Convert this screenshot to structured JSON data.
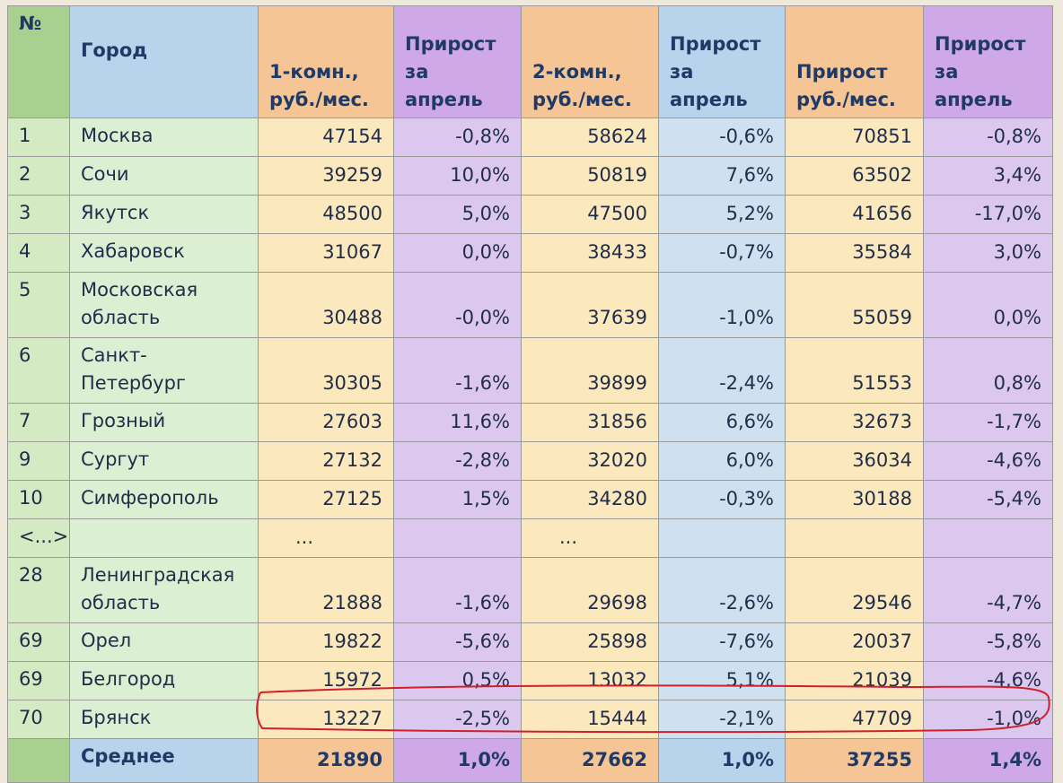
{
  "table": {
    "header": [
      "№",
      "Город",
      "1-комн.,\nруб./мес.",
      "Прирост\nза апрель",
      "2-комн.,\nруб./мес.",
      "Прирост\nза апрель",
      "Прирост\nруб./мес.",
      "Прирост\nза апрель"
    ],
    "rows": [
      [
        "1",
        "Москва",
        "47154",
        "-0,8%",
        "58624",
        "-0,6%",
        "70851",
        "-0,8%"
      ],
      [
        "2",
        "Сочи",
        "39259",
        "10,0%",
        "50819",
        "7,6%",
        "63502",
        "3,4%"
      ],
      [
        "3",
        "Якутск",
        "48500",
        "5,0%",
        "47500",
        "5,2%",
        "41656",
        "-17,0%"
      ],
      [
        "4",
        "Хабаровск",
        "31067",
        "0,0%",
        "38433",
        "-0,7%",
        "35584",
        "3,0%"
      ],
      [
        "5",
        "Московская область",
        "30488",
        "-0,0%",
        "37639",
        "-1,0%",
        "55059",
        "0,0%"
      ],
      [
        "6",
        "Санкт-Петербург",
        "30305",
        "-1,6%",
        "39899",
        "-2,4%",
        "51553",
        "0,8%"
      ],
      [
        "7",
        "Грозный",
        "27603",
        "11,6%",
        "31856",
        "6,6%",
        "32673",
        "-1,7%"
      ],
      [
        "9",
        "Сургут",
        "27132",
        "-2,8%",
        "32020",
        "6,0%",
        "36034",
        "-4,6%"
      ],
      [
        "10",
        "Симферополь",
        "27125",
        "1,5%",
        "34280",
        "-0,3%",
        "30188",
        "-5,4%"
      ],
      [
        "<...>",
        null,
        "...",
        null,
        "...",
        null,
        null,
        null
      ],
      [
        "28",
        "Ленинградская область",
        "21888",
        "-1,6%",
        "29698",
        "-2,6%",
        "29546",
        "-4,7%"
      ],
      [
        "69",
        "Орел",
        "19822",
        "-5,6%",
        "25898",
        "-7,6%",
        "20037",
        "-5,8%"
      ],
      [
        "69",
        "Белгород",
        "15972",
        "0,5%",
        "13032",
        "5,1%",
        "21039",
        "-4,6%"
      ],
      [
        "70",
        "Брянск",
        "13227",
        "-2,5%",
        "15444",
        "-2,1%",
        "47709",
        "-1,0%"
      ]
    ],
    "footer": [
      null,
      "Среднее",
      "21890",
      "1,0%",
      "27662",
      "1,0%",
      "37255",
      "1,4%"
    ]
  }
}
